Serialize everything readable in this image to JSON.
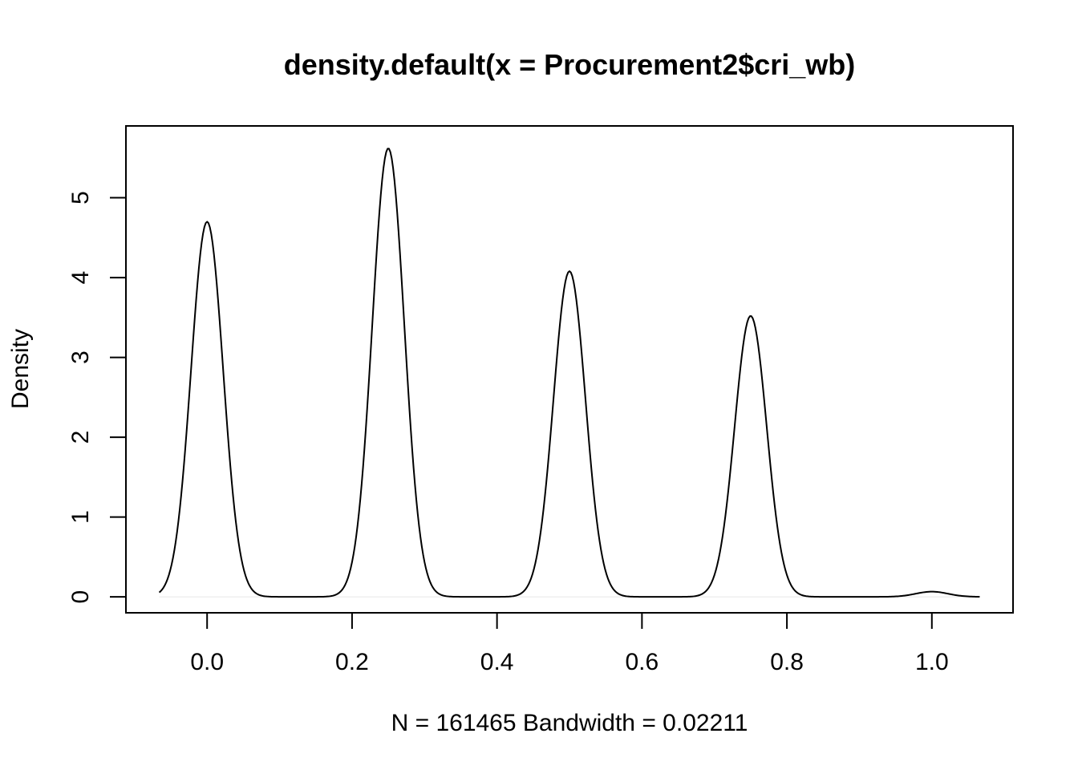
{
  "chart_data": {
    "type": "line",
    "title": "density.default(x = Procurement2$cri_wb)",
    "xlabel": "N = 161465   Bandwidth = 0.02211",
    "ylabel": "Density",
    "xlim": [
      -0.112,
      1.112
    ],
    "ylim": [
      -0.2,
      5.9
    ],
    "x_ticks": [
      "0.0",
      "0.2",
      "0.4",
      "0.6",
      "0.8",
      "1.0"
    ],
    "x_tick_values": [
      0.0,
      0.2,
      0.4,
      0.6,
      0.8,
      1.0
    ],
    "y_ticks": [
      "0",
      "1",
      "2",
      "3",
      "4",
      "5"
    ],
    "y_tick_values": [
      0,
      1,
      2,
      3,
      4,
      5
    ],
    "x_range": [
      -0.066,
      1.066
    ],
    "peaks": [
      {
        "x": 0.0,
        "density": 4.7
      },
      {
        "x": 0.25,
        "density": 5.62
      },
      {
        "x": 0.5,
        "density": 4.08
      },
      {
        "x": 0.75,
        "density": 3.52
      },
      {
        "x": 1.0,
        "density": 0.065
      }
    ],
    "bandwidth": 0.02211,
    "n": 161465,
    "zero_line": true,
    "grid": false,
    "colors": {
      "line": "#000000",
      "zero_line": "#e6e6e6"
    }
  }
}
